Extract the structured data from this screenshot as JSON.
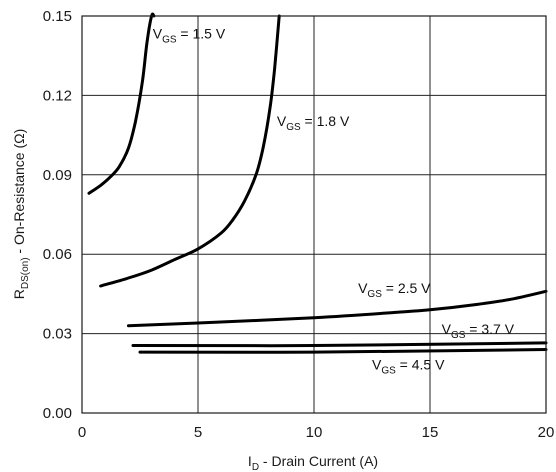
{
  "chart_data": {
    "type": "line",
    "xlabel": {
      "main": "I",
      "sub": "D",
      "rest": " - Drain Current (A)"
    },
    "ylabel": {
      "main": "R",
      "sub": "DS(on)",
      "rest": " - On-Resistance (Ω)"
    },
    "xlim": [
      0,
      20
    ],
    "ylim": [
      0,
      0.15
    ],
    "xticks": [
      "0",
      "5",
      "10",
      "15",
      "20"
    ],
    "yticks": [
      "0.00",
      "0.03",
      "0.06",
      "0.09",
      "0.12",
      "0.15"
    ],
    "grid": true,
    "series": [
      {
        "name": {
          "main": "V",
          "sub": "GS",
          "rest": " = 1.5 V"
        },
        "x": [
          0.3,
          0.8,
          1.2,
          1.6,
          2.0,
          2.3,
          2.6,
          2.8,
          3.0,
          3.1
        ],
        "y": [
          0.083,
          0.086,
          0.089,
          0.093,
          0.1,
          0.11,
          0.125,
          0.14,
          0.15,
          0.15
        ]
      },
      {
        "name": {
          "main": "V",
          "sub": "GS",
          "rest": " = 1.8 V"
        },
        "x": [
          0.8,
          2.0,
          3.0,
          4.0,
          5.0,
          6.0,
          6.5,
          7.0,
          7.5,
          7.8,
          8.1,
          8.3,
          8.5
        ],
        "y": [
          0.048,
          0.051,
          0.054,
          0.058,
          0.062,
          0.068,
          0.073,
          0.08,
          0.09,
          0.1,
          0.115,
          0.13,
          0.15
        ]
      },
      {
        "name": {
          "main": "V",
          "sub": "GS",
          "rest": " = 2.5 V"
        },
        "x": [
          2.0,
          5.0,
          10.0,
          13.5,
          15.0,
          17.0,
          18.5,
          20.0
        ],
        "y": [
          0.033,
          0.034,
          0.036,
          0.038,
          0.039,
          0.041,
          0.043,
          0.046
        ]
      },
      {
        "name": {
          "main": "V",
          "sub": "GS",
          "rest": " = 3.7 V"
        },
        "x": [
          2.2,
          10.0,
          20.0
        ],
        "y": [
          0.0255,
          0.0255,
          0.0265
        ]
      },
      {
        "name": {
          "main": "V",
          "sub": "GS",
          "rest": " = 4.5 V"
        },
        "x": [
          2.5,
          10.0,
          20.0
        ],
        "y": [
          0.023,
          0.023,
          0.024
        ]
      }
    ],
    "series_labels": [
      {
        "series": 0,
        "x": 3.05,
        "y": 0.1415
      },
      {
        "series": 1,
        "x": 8.4,
        "y": 0.1085
      },
      {
        "series": 2,
        "x": 11.9,
        "y": 0.0453
      },
      {
        "series": 3,
        "x": 15.5,
        "y": 0.0298
      },
      {
        "series": 4,
        "x": 12.5,
        "y": 0.0165
      }
    ]
  }
}
